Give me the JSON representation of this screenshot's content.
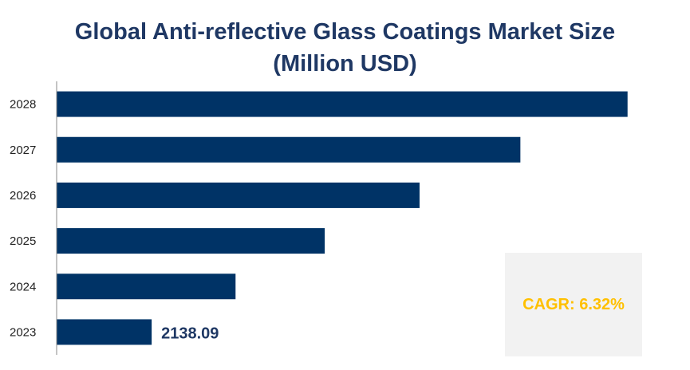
{
  "chart_data": {
    "type": "bar",
    "orientation": "horizontal",
    "title": "Global Anti-reflective Glass Coatings Market Size (Million USD)",
    "title_lines": [
      "Global Anti-reflective Glass Coatings Market Size",
      "(Million USD)"
    ],
    "categories": [
      "2023",
      "2024",
      "2025",
      "2026",
      "2027",
      "2028"
    ],
    "values": [
      2138.09,
      2273.22,
      2416.89,
      2569.64,
      2732.04,
      2904.7
    ],
    "data_labels": {
      "2023": "2138.09"
    },
    "xlim": [
      1985,
      2950
    ],
    "xlabel": "",
    "ylabel": "",
    "grid": false,
    "legend": "none",
    "bar_color": "#003366",
    "annotation": "CAGR: 6.32%",
    "annotation_color": "#FFC000"
  }
}
